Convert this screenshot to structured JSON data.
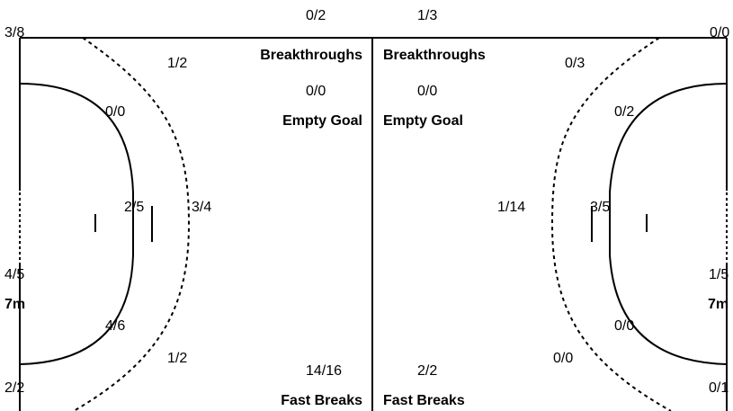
{
  "left": {
    "corner_top": "3/8",
    "wing_top_9m": "1/2",
    "center_back_top": "0/2",
    "breakthroughs_value": "0/0",
    "breakthroughs_label": "Breakthroughs",
    "empty_goal_value": "0/0",
    "empty_goal_label": "Empty Goal",
    "six_top": "0/0",
    "six_center": "2/5",
    "nine_center": "3/4",
    "seven_m_value": "4/5",
    "seven_m_label": "7m",
    "six_bottom": "4/6",
    "wing_bottom_9m": "1/2",
    "corner_bottom": "2/2",
    "fast_breaks_value": "14/16",
    "fast_breaks_label": "Fast Breaks"
  },
  "right": {
    "corner_top": "0/0",
    "wing_top_9m": "0/3",
    "center_back_top": "1/3",
    "breakthroughs_value": "0/0",
    "breakthroughs_label": "Breakthroughs",
    "empty_goal_value": "0/0",
    "empty_goal_label": "Empty Goal",
    "six_top": "0/2",
    "six_center": "3/5",
    "nine_center": "1/14",
    "seven_m_value": "1/5",
    "seven_m_label": "7m",
    "six_bottom": "0/0",
    "wing_bottom_9m": "0/0",
    "corner_bottom": "0/1",
    "fast_breaks_value": "2/2",
    "fast_breaks_label": "Fast Breaks"
  }
}
